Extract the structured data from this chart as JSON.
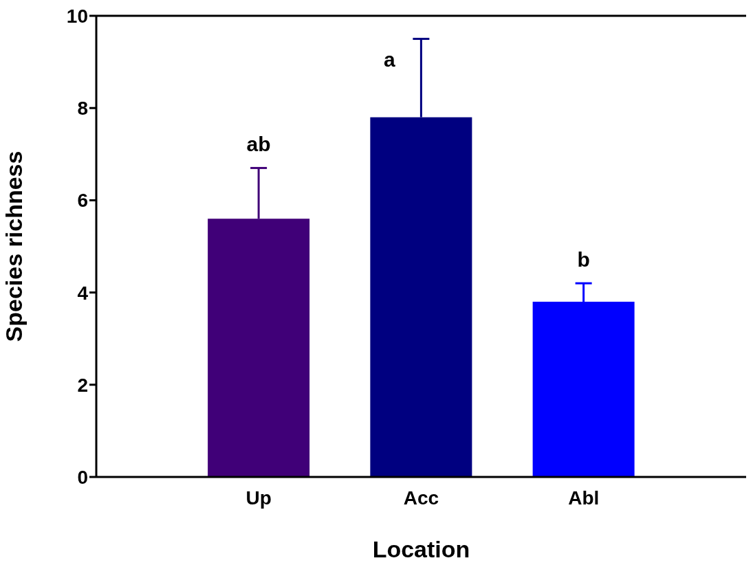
{
  "chart_data": {
    "type": "bar",
    "xlabel": "Location",
    "ylabel": "Species richness",
    "categories": [
      "Up",
      "Acc",
      "Abl"
    ],
    "values": [
      5.6,
      7.8,
      3.8
    ],
    "colors": [
      "#400078",
      "#000080",
      "#0000ff"
    ],
    "errors": [
      [
        5.6,
        6.7
      ],
      [
        7.8,
        9.5
      ],
      [
        3.8,
        4.2
      ]
    ],
    "ylim": [
      0,
      10
    ],
    "yticks": [
      0,
      2,
      4,
      6,
      8,
      10
    ],
    "grid": false,
    "legend": false,
    "annotations": [
      "ab",
      "a",
      "b"
    ]
  }
}
